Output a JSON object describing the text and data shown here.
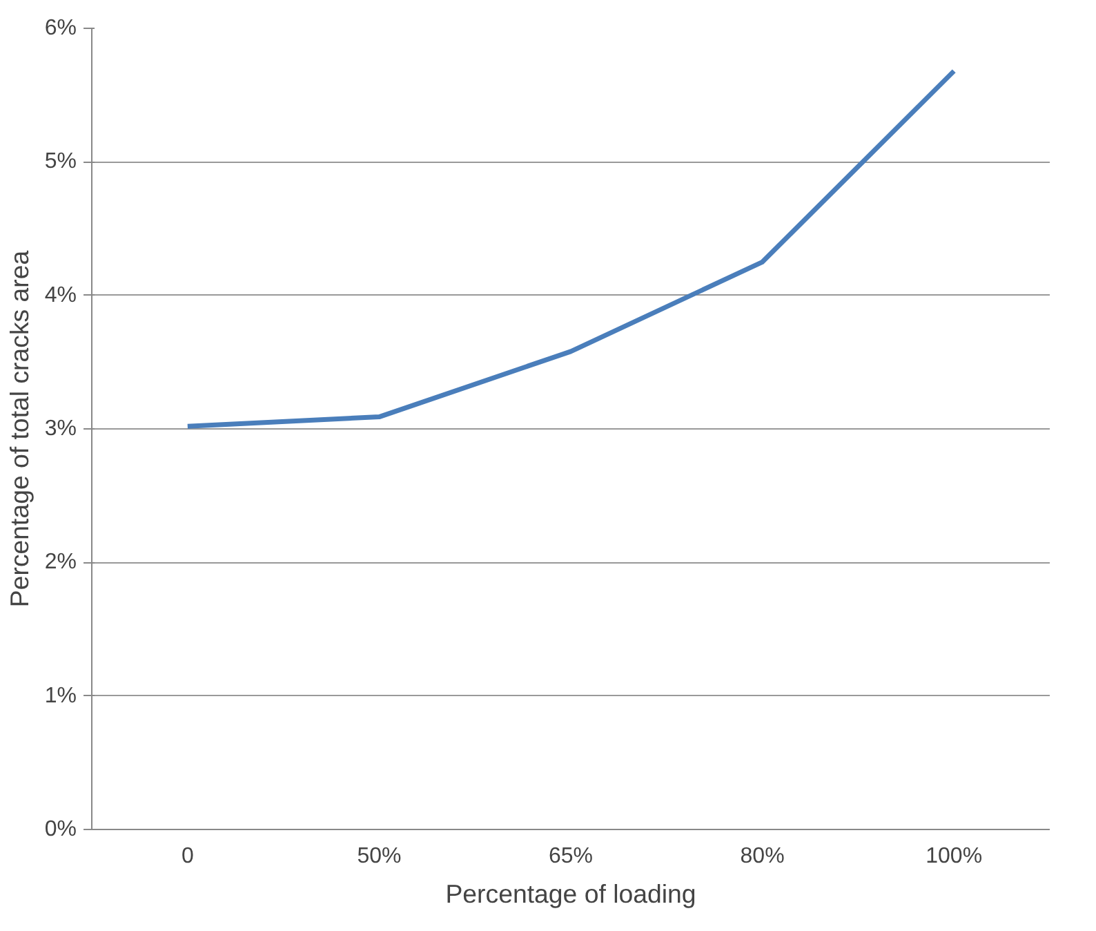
{
  "chart_data": {
    "type": "line",
    "xlabel": "Percentage of loading",
    "ylabel": "Percentage of total cracks area",
    "categories": [
      "0",
      "50%",
      "65%",
      "80%",
      "100%"
    ],
    "series": [
      {
        "color": "#4a7ebb",
        "values": [
          3.02,
          3.09,
          3.58,
          4.25,
          5.68
        ]
      }
    ],
    "ylim": [
      0,
      6
    ],
    "yticks": [
      {
        "value": 0,
        "label": "0%"
      },
      {
        "value": 1,
        "label": "1%"
      },
      {
        "value": 2,
        "label": "2%"
      },
      {
        "value": 3,
        "label": "3%"
      },
      {
        "value": 4,
        "label": "4%"
      },
      {
        "value": 5,
        "label": "5%"
      },
      {
        "value": 6,
        "label": "6%"
      }
    ],
    "grid": "y",
    "marker": "none",
    "line_style": "solid"
  }
}
